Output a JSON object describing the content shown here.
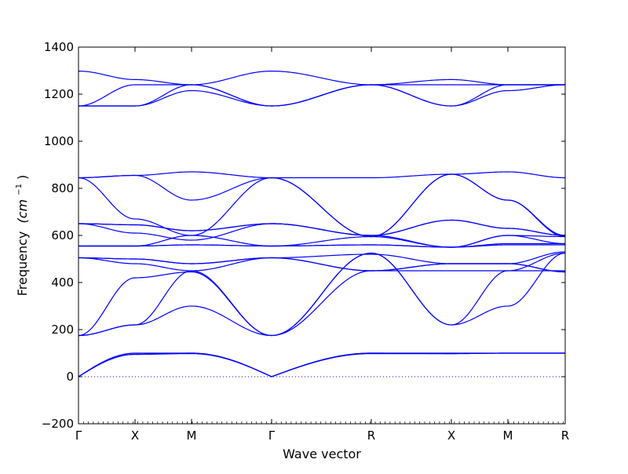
{
  "chart_data": {
    "type": "line",
    "xlabel": "Wave vector",
    "ylabel": "Frequency",
    "ylabel_unit": "(cm",
    "ylabel_exp": "−1",
    "ylabel_close": ")",
    "ylim": [
      -200,
      1400
    ],
    "yticks": [
      -200,
      0,
      200,
      400,
      600,
      800,
      1000,
      1200,
      1400
    ],
    "ytick_labels": [
      "−200",
      "0",
      "200",
      "400",
      "600",
      "800",
      "1000",
      "1200",
      "1400"
    ],
    "xlim": [
      0,
      6.2
    ],
    "high_symmetry_points": [
      {
        "label": "Γ",
        "x": 0
      },
      {
        "label": "X",
        "x": 0.72
      },
      {
        "label": "M",
        "x": 1.44
      },
      {
        "label": "Γ",
        "x": 2.46
      },
      {
        "label": "R",
        "x": 3.73
      },
      {
        "label": "X",
        "x": 4.75
      },
      {
        "label": "M",
        "x": 5.47
      },
      {
        "label": "R",
        "x": 6.2
      }
    ],
    "zero_line": {
      "y": 0,
      "style": "dotted"
    },
    "line_color": "#0000ff",
    "series": [
      {
        "values": [
          0,
          100,
          100,
          0,
          100,
          100,
          100,
          100
        ]
      },
      {
        "values": [
          0,
          95,
          100,
          0,
          100,
          98,
          100,
          100
        ]
      },
      {
        "values": [
          0,
          95,
          98,
          0,
          98,
          98,
          100,
          100
        ]
      },
      {
        "values": [
          175,
          220,
          450,
          175,
          525,
          220,
          450,
          525
        ]
      },
      {
        "values": [
          175,
          220,
          300,
          175,
          525,
          220,
          300,
          525
        ]
      },
      {
        "values": [
          175,
          420,
          445,
          175,
          450,
          450,
          450,
          450
        ]
      },
      {
        "values": [
          505,
          500,
          480,
          505,
          450,
          480,
          480,
          530
        ]
      },
      {
        "values": [
          505,
          480,
          450,
          505,
          520,
          480,
          480,
          445
        ]
      },
      {
        "values": [
          505,
          500,
          480,
          505,
          450,
          480,
          480,
          445
        ]
      },
      {
        "values": [
          555,
          555,
          600,
          555,
          595,
          550,
          600,
          565
        ]
      },
      {
        "values": [
          555,
          555,
          560,
          555,
          560,
          550,
          565,
          565
        ]
      },
      {
        "values": [
          555,
          555,
          560,
          555,
          560,
          550,
          560,
          560
        ]
      },
      {
        "values": [
          650,
          645,
          620,
          650,
          600,
          665,
          630,
          600
        ]
      },
      {
        "values": [
          650,
          645,
          620,
          650,
          600,
          665,
          630,
          600
        ]
      },
      {
        "values": [
          650,
          610,
          580,
          650,
          600,
          550,
          600,
          595
        ]
      },
      {
        "values": [
          845,
          670,
          600,
          845,
          595,
          860,
          750,
          595
        ]
      },
      {
        "values": [
          845,
          855,
          750,
          845,
          595,
          860,
          750,
          600
        ]
      },
      {
        "values": [
          845,
          855,
          870,
          845,
          845,
          860,
          870,
          845
        ]
      },
      {
        "values": [
          1150,
          1150,
          1240,
          1150,
          1240,
          1150,
          1240,
          1240
        ]
      },
      {
        "values": [
          1150,
          1150,
          1215,
          1150,
          1240,
          1150,
          1215,
          1240
        ]
      },
      {
        "values": [
          1298,
          1262,
          1240,
          1298,
          1240,
          1262,
          1240,
          1240
        ]
      },
      {
        "values": [
          1150,
          1240,
          1240,
          1150,
          1240,
          1240,
          1240,
          1240
        ]
      }
    ]
  }
}
